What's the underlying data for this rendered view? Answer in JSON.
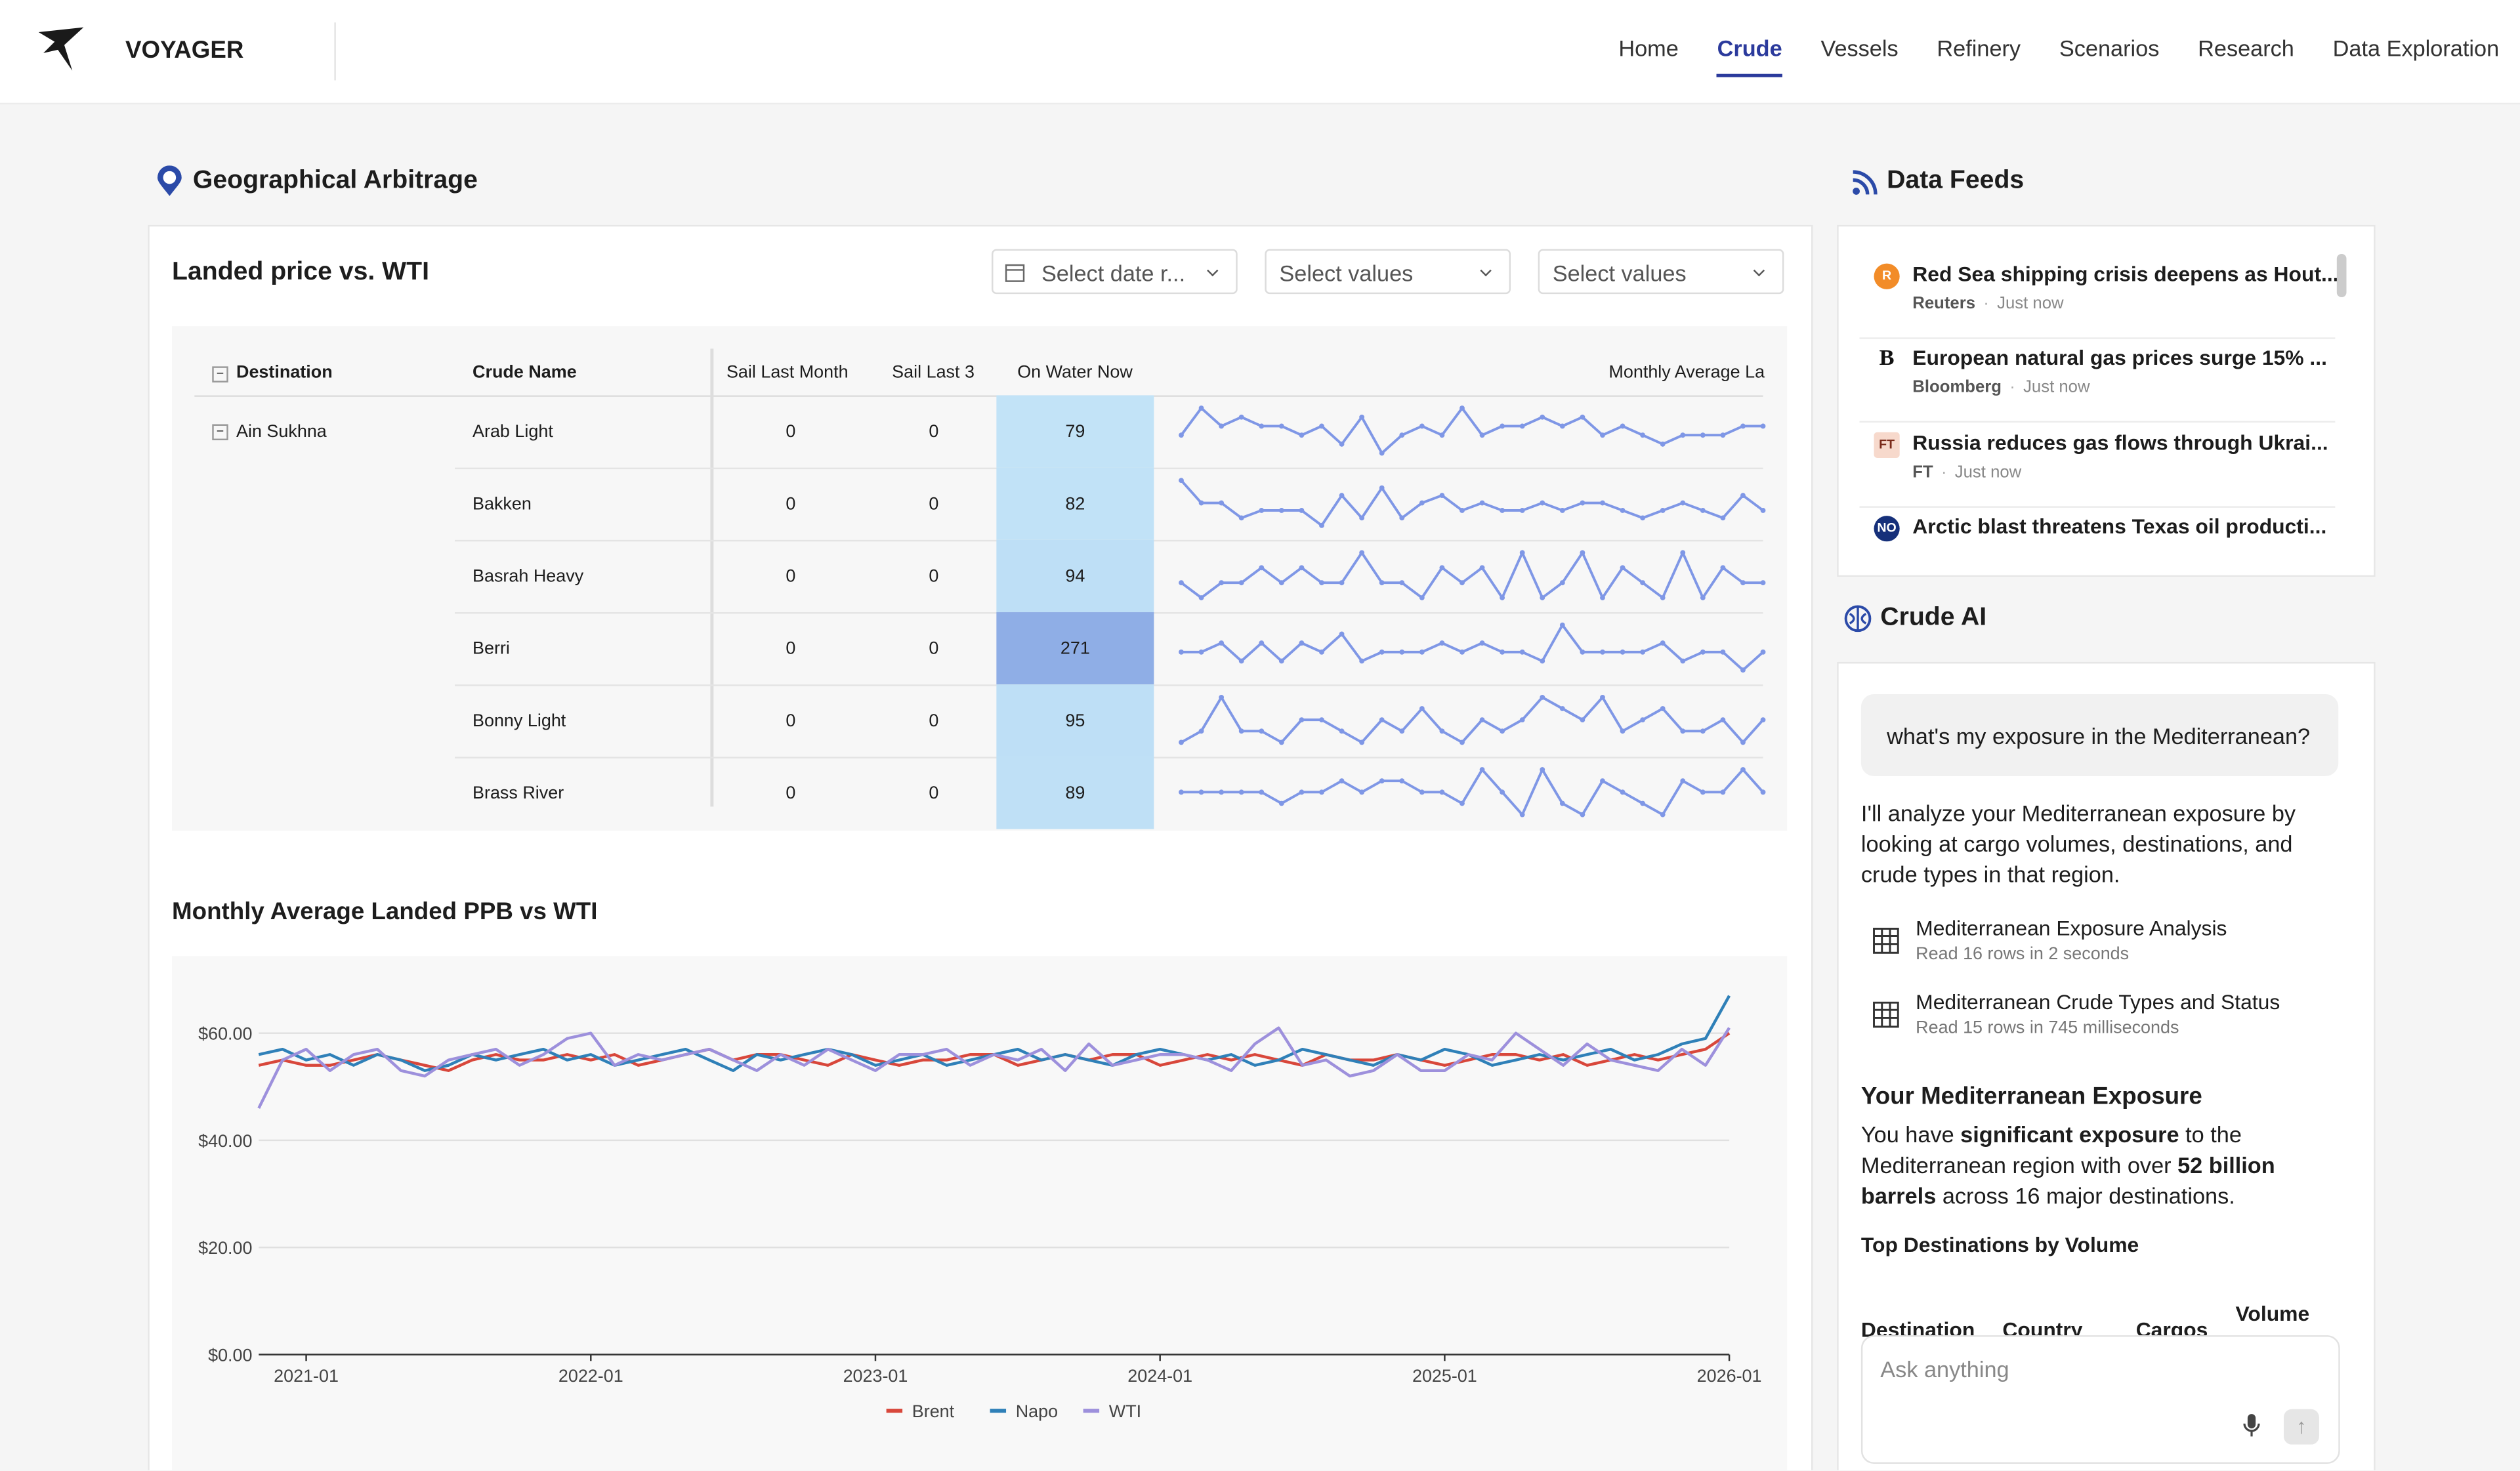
{
  "header": {
    "brand": "VOYAGER",
    "nav": [
      "Home",
      "Crude",
      "Vessels",
      "Refinery",
      "Scenarios",
      "Research",
      "Data Exploration"
    ],
    "active_nav": 1
  },
  "section_title": "Geographical Arbitrage",
  "table": {
    "title": "Landed price vs. WTI",
    "filters": [
      "Select date r...",
      "Select values",
      "Select values"
    ],
    "columns": [
      "Destination",
      "Crude Name",
      "Sail Last Month",
      "Sail Last 3",
      "On Water Now",
      "Monthly Average La"
    ],
    "group": "Ain Sukhna",
    "rows": [
      {
        "crude": "Arab Light",
        "sail_last_month": 0,
        "sail_last_3": 0,
        "on_water_now": 79,
        "sparkline": [
          5,
          8,
          6,
          7,
          6,
          6,
          5,
          6,
          4,
          7,
          3,
          5,
          6,
          5,
          8,
          5,
          6,
          6,
          7,
          6,
          7,
          5,
          6,
          5,
          4,
          5,
          5,
          5,
          6,
          6
        ]
      },
      {
        "crude": "Bakken",
        "sail_last_month": 0,
        "sail_last_3": 0,
        "on_water_now": 82,
        "sparkline": [
          9,
          6,
          6,
          4,
          5,
          5,
          5,
          3,
          7,
          4,
          8,
          4,
          6,
          7,
          5,
          6,
          5,
          5,
          6,
          5,
          6,
          6,
          5,
          4,
          5,
          6,
          5,
          4,
          7,
          5
        ]
      },
      {
        "crude": "Basrah Heavy",
        "sail_last_month": 0,
        "sail_last_3": 0,
        "on_water_now": 94,
        "sparkline": [
          5,
          4,
          5,
          5,
          6,
          5,
          6,
          5,
          5,
          7,
          5,
          5,
          4,
          6,
          5,
          6,
          4,
          7,
          4,
          5,
          7,
          4,
          6,
          5,
          4,
          7,
          4,
          6,
          5,
          5
        ]
      },
      {
        "crude": "Berri",
        "sail_last_month": 0,
        "sail_last_3": 0,
        "on_water_now": 271,
        "sparkline": [
          5,
          5,
          6,
          4,
          6,
          4,
          6,
          5,
          7,
          4,
          5,
          5,
          5,
          6,
          5,
          6,
          5,
          5,
          4,
          8,
          5,
          5,
          5,
          5,
          6,
          4,
          5,
          5,
          3,
          5
        ]
      },
      {
        "crude": "Bonny Light",
        "sail_last_month": 0,
        "sail_last_3": 0,
        "on_water_now": 95,
        "sparkline": [
          4,
          5,
          8,
          5,
          5,
          4,
          6,
          6,
          5,
          4,
          6,
          5,
          7,
          5,
          4,
          6,
          5,
          6,
          8,
          7,
          6,
          8,
          5,
          6,
          7,
          5,
          5,
          6,
          4,
          6
        ]
      },
      {
        "crude": "Brass River",
        "sail_last_month": 0,
        "sail_last_3": 0,
        "on_water_now": 89,
        "sparkline": [
          5,
          5,
          5,
          5,
          5,
          4,
          5,
          5,
          6,
          5,
          6,
          6,
          5,
          5,
          4,
          7,
          5,
          3,
          7,
          4,
          3,
          6,
          5,
          4,
          3,
          6,
          5,
          5,
          7,
          5
        ]
      }
    ]
  },
  "chart_data": {
    "type": "line",
    "title": "Monthly Average Landed PPB vs WTI",
    "x": [
      "2020-11",
      "2020-12",
      "2021-01",
      "2021-02",
      "2021-03",
      "2021-04",
      "2021-05",
      "2021-06",
      "2021-07",
      "2021-08",
      "2021-09",
      "2021-10",
      "2021-11",
      "2021-12",
      "2022-01",
      "2022-02",
      "2022-03",
      "2022-04",
      "2022-05",
      "2022-06",
      "2022-07",
      "2022-08",
      "2022-09",
      "2022-10",
      "2022-11",
      "2022-12",
      "2023-01",
      "2023-02",
      "2023-03",
      "2023-04",
      "2023-05",
      "2023-06",
      "2023-07",
      "2023-08",
      "2023-09",
      "2023-10",
      "2023-11",
      "2023-12",
      "2024-01",
      "2024-02",
      "2024-03",
      "2024-04",
      "2024-05",
      "2024-06",
      "2024-07",
      "2024-08",
      "2024-09",
      "2024-10",
      "2024-11",
      "2024-12",
      "2025-01",
      "2025-02",
      "2025-03",
      "2025-04",
      "2025-05",
      "2025-06",
      "2025-07",
      "2025-08",
      "2025-09",
      "2025-10",
      "2025-11",
      "2025-12",
      "2026-01"
    ],
    "xticks": [
      "2021-01",
      "2022-01",
      "2023-01",
      "2024-01",
      "2025-01",
      "2026-01"
    ],
    "ylim": [
      0,
      68
    ],
    "yticks": [
      {
        "value": 0,
        "label": "$0.00"
      },
      {
        "value": 20,
        "label": "$20.00"
      },
      {
        "value": 40,
        "label": "$40.00"
      },
      {
        "value": 60,
        "label": "$60.00"
      }
    ],
    "grid": true,
    "series": [
      {
        "name": "Brent",
        "color": "#d8473b",
        "values": [
          54,
          55,
          54,
          54,
          55,
          56,
          55,
          54,
          53,
          55,
          56,
          55,
          55,
          56,
          55,
          56,
          54,
          55,
          56,
          57,
          55,
          56,
          56,
          55,
          54,
          56,
          55,
          54,
          55,
          55,
          56,
          56,
          54,
          55,
          56,
          55,
          56,
          56,
          54,
          55,
          56,
          55,
          56,
          55,
          54,
          56,
          55,
          55,
          56,
          55,
          54,
          55,
          56,
          56,
          55,
          56,
          54,
          55,
          56,
          55,
          56,
          57,
          60
        ]
      },
      {
        "name": "Napo",
        "color": "#2f80b8",
        "values": [
          56,
          57,
          55,
          56,
          54,
          56,
          55,
          53,
          54,
          56,
          55,
          56,
          57,
          55,
          56,
          54,
          55,
          56,
          57,
          55,
          53,
          56,
          55,
          56,
          57,
          56,
          54,
          55,
          56,
          54,
          55,
          56,
          57,
          55,
          56,
          55,
          54,
          56,
          57,
          56,
          55,
          56,
          54,
          55,
          57,
          56,
          55,
          54,
          56,
          55,
          57,
          56,
          54,
          55,
          56,
          55,
          56,
          57,
          55,
          56,
          58,
          59,
          67
        ]
      },
      {
        "name": "WTI",
        "color": "#9d90dc",
        "values": [
          46,
          55,
          57,
          53,
          56,
          57,
          53,
          52,
          55,
          56,
          57,
          54,
          56,
          59,
          60,
          54,
          56,
          55,
          56,
          57,
          55,
          53,
          56,
          54,
          57,
          55,
          53,
          56,
          56,
          57,
          54,
          56,
          55,
          57,
          53,
          58,
          54,
          55,
          56,
          56,
          55,
          53,
          58,
          61,
          54,
          55,
          52,
          53,
          56,
          53,
          53,
          56,
          55,
          60,
          57,
          54,
          58,
          55,
          54,
          53,
          57,
          54,
          61
        ]
      }
    ]
  },
  "feeds": {
    "title": "Data Feeds",
    "items": [
      {
        "badge": "R",
        "headline": "Red Sea shipping crisis deepens as Hout...",
        "source": "Reuters",
        "time": "Just now"
      },
      {
        "badge": "B",
        "headline": "European natural gas prices surge 15% ...",
        "source": "Bloomberg",
        "time": "Just now"
      },
      {
        "badge": "FT",
        "headline": "Russia reduces gas flows through Ukrai...",
        "source": "FT",
        "time": "Just now"
      },
      {
        "badge": "NO",
        "headline": "Arctic blast threatens Texas oil producti..."
      }
    ]
  },
  "assistant": {
    "title": "Crude AI",
    "question": "what's my exposure in the Mediterranean?",
    "intro": "I'll analyze your Mediterranean exposure by looking at cargo volumes, destinations, and crude types in that region.",
    "tools": [
      {
        "title": "Mediterranean Exposure Analysis",
        "detail": "Read 16 rows in 2 seconds"
      },
      {
        "title": "Mediterranean Crude Types and Status",
        "detail": "Read 15 rows in 745 milliseconds"
      }
    ],
    "heading": "Your Mediterranean Exposure",
    "summary": [
      "You have ",
      "significant exposure",
      " to the Mediterranean region with over ",
      "52 billion barrels",
      " across 16 major destinations."
    ],
    "subheading": "Top Destinations by Volume",
    "table_columns": [
      "Destination",
      "Country",
      "Cargos",
      "Volume"
    ],
    "placeholder": "Ask anything"
  }
}
